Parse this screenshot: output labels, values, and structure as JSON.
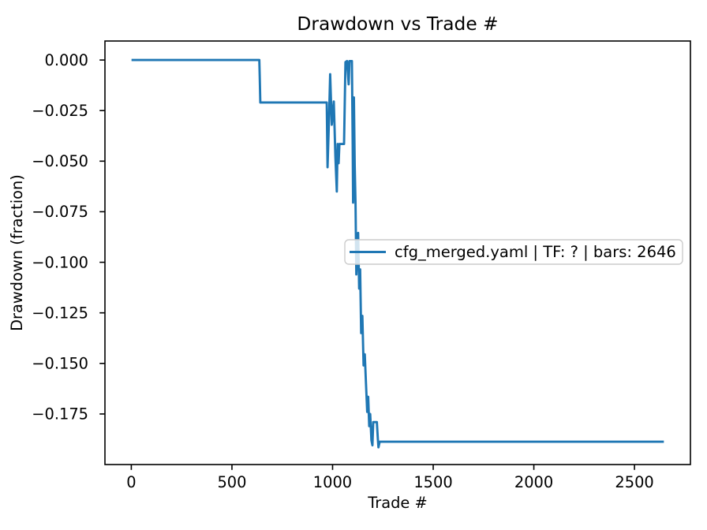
{
  "figure": {
    "background": "#ffffff",
    "spine_color": "#000000",
    "tick_color": "#000000"
  },
  "chart_data": {
    "type": "line",
    "title": "Drawdown vs Trade #",
    "xlabel": "Trade #",
    "ylabel": "Drawdown (fraction)",
    "xlim": [
      -131,
      2778
    ],
    "ylim": [
      -0.2,
      0.0094
    ],
    "grid": false,
    "xticks": {
      "values": [
        0,
        500,
        1000,
        1500,
        2000,
        2500
      ],
      "labels": [
        "0",
        "500",
        "1000",
        "1500",
        "2000",
        "2500"
      ]
    },
    "yticks": {
      "values": [
        0.0,
        -0.025,
        -0.05,
        -0.075,
        -0.1,
        -0.125,
        -0.15,
        -0.175
      ],
      "labels": [
        "0.000",
        "−0.025",
        "−0.050",
        "−0.075",
        "−0.100",
        "−0.125",
        "−0.150",
        "−0.175"
      ]
    },
    "legend": {
      "position": "center-right",
      "frame": true,
      "frame_color": "#cccccc",
      "entries": [
        "cfg_merged.yaml | TF: ? | bars: 2646"
      ]
    },
    "series": [
      {
        "name": "cfg_merged.yaml | TF: ? | bars: 2646",
        "color": "#1f77b4",
        "points": [
          [
            1,
            0.0
          ],
          [
            636,
            0.0
          ],
          [
            638,
            -0.008
          ],
          [
            641,
            -0.021
          ],
          [
            971,
            -0.021
          ],
          [
            975,
            -0.053
          ],
          [
            982,
            -0.03
          ],
          [
            988,
            -0.007
          ],
          [
            996,
            -0.032
          ],
          [
            1006,
            -0.0205
          ],
          [
            1014,
            -0.048
          ],
          [
            1021,
            -0.065
          ],
          [
            1025,
            -0.0415
          ],
          [
            1030,
            -0.051
          ],
          [
            1034,
            -0.0415
          ],
          [
            1057,
            -0.0415
          ],
          [
            1064,
            -0.001
          ],
          [
            1072,
            -0.0005
          ],
          [
            1080,
            -0.012
          ],
          [
            1084,
            -0.0005
          ],
          [
            1096,
            -0.0005
          ],
          [
            1100,
            -0.042
          ],
          [
            1102,
            -0.0705
          ],
          [
            1106,
            -0.0185
          ],
          [
            1110,
            -0.052
          ],
          [
            1114,
            -0.0705
          ],
          [
            1118,
            -0.106
          ],
          [
            1122,
            -0.096
          ],
          [
            1127,
            -0.0855
          ],
          [
            1132,
            -0.113
          ],
          [
            1137,
            -0.1035
          ],
          [
            1142,
            -0.135
          ],
          [
            1148,
            -0.1265
          ],
          [
            1154,
            -0.151
          ],
          [
            1160,
            -0.1455
          ],
          [
            1166,
            -0.16
          ],
          [
            1172,
            -0.174
          ],
          [
            1177,
            -0.1665
          ],
          [
            1182,
            -0.181
          ],
          [
            1187,
            -0.175
          ],
          [
            1193,
            -0.188
          ],
          [
            1198,
            -0.1905
          ],
          [
            1202,
            -0.179
          ],
          [
            1220,
            -0.179
          ],
          [
            1225,
            -0.1875
          ],
          [
            1228,
            -0.1915
          ],
          [
            1234,
            -0.1887
          ],
          [
            2646,
            -0.1887
          ]
        ]
      }
    ]
  }
}
